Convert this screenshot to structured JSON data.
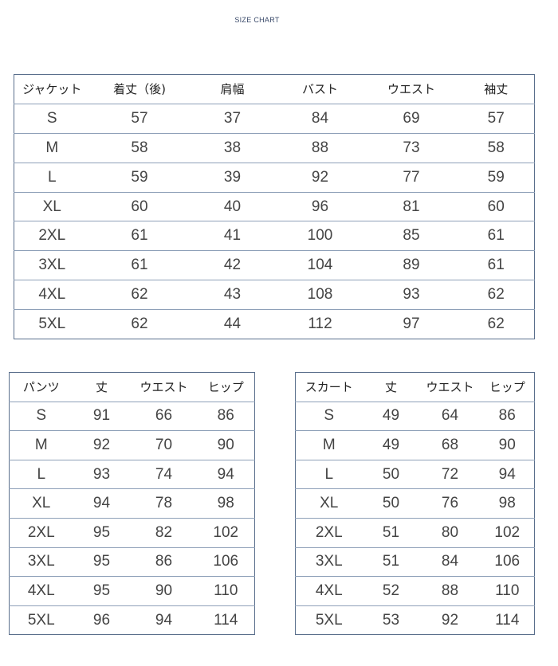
{
  "title": "SIZE CHART",
  "jacket": {
    "headers": [
      "ジャケット",
      "着丈（後)",
      "肩幅",
      "バスト",
      "ウエスト",
      "袖丈"
    ],
    "rows": [
      [
        "S",
        "57",
        "37",
        "84",
        "69",
        "57"
      ],
      [
        "M",
        "58",
        "38",
        "88",
        "73",
        "58"
      ],
      [
        "L",
        "59",
        "39",
        "92",
        "77",
        "59"
      ],
      [
        "XL",
        "60",
        "40",
        "96",
        "81",
        "60"
      ],
      [
        "2XL",
        "61",
        "41",
        "100",
        "85",
        "61"
      ],
      [
        "3XL",
        "61",
        "42",
        "104",
        "89",
        "61"
      ],
      [
        "4XL",
        "62",
        "43",
        "108",
        "93",
        "62"
      ],
      [
        "5XL",
        "62",
        "44",
        "112",
        "97",
        "62"
      ]
    ]
  },
  "pants": {
    "headers": [
      "パンツ",
      "丈",
      "ウエスト",
      "ヒップ"
    ],
    "rows": [
      [
        "S",
        "91",
        "66",
        "86"
      ],
      [
        "M",
        "92",
        "70",
        "90"
      ],
      [
        "L",
        "93",
        "74",
        "94"
      ],
      [
        "XL",
        "94",
        "78",
        "98"
      ],
      [
        "2XL",
        "95",
        "82",
        "102"
      ],
      [
        "3XL",
        "95",
        "86",
        "106"
      ],
      [
        "4XL",
        "95",
        "90",
        "110"
      ],
      [
        "5XL",
        "96",
        "94",
        "114"
      ]
    ]
  },
  "skirt": {
    "headers": [
      "スカート",
      "丈",
      "ウエスト",
      "ヒップ"
    ],
    "rows": [
      [
        "S",
        "49",
        "64",
        "86"
      ],
      [
        "M",
        "49",
        "68",
        "90"
      ],
      [
        "L",
        "50",
        "72",
        "94"
      ],
      [
        "XL",
        "50",
        "76",
        "98"
      ],
      [
        "2XL",
        "51",
        "80",
        "102"
      ],
      [
        "3XL",
        "51",
        "84",
        "106"
      ],
      [
        "4XL",
        "52",
        "88",
        "110"
      ],
      [
        "5XL",
        "53",
        "92",
        "114"
      ]
    ]
  },
  "colors": {
    "border": "#5a6f8c",
    "row_divider": "#8ea0b8",
    "text": "#444444"
  }
}
